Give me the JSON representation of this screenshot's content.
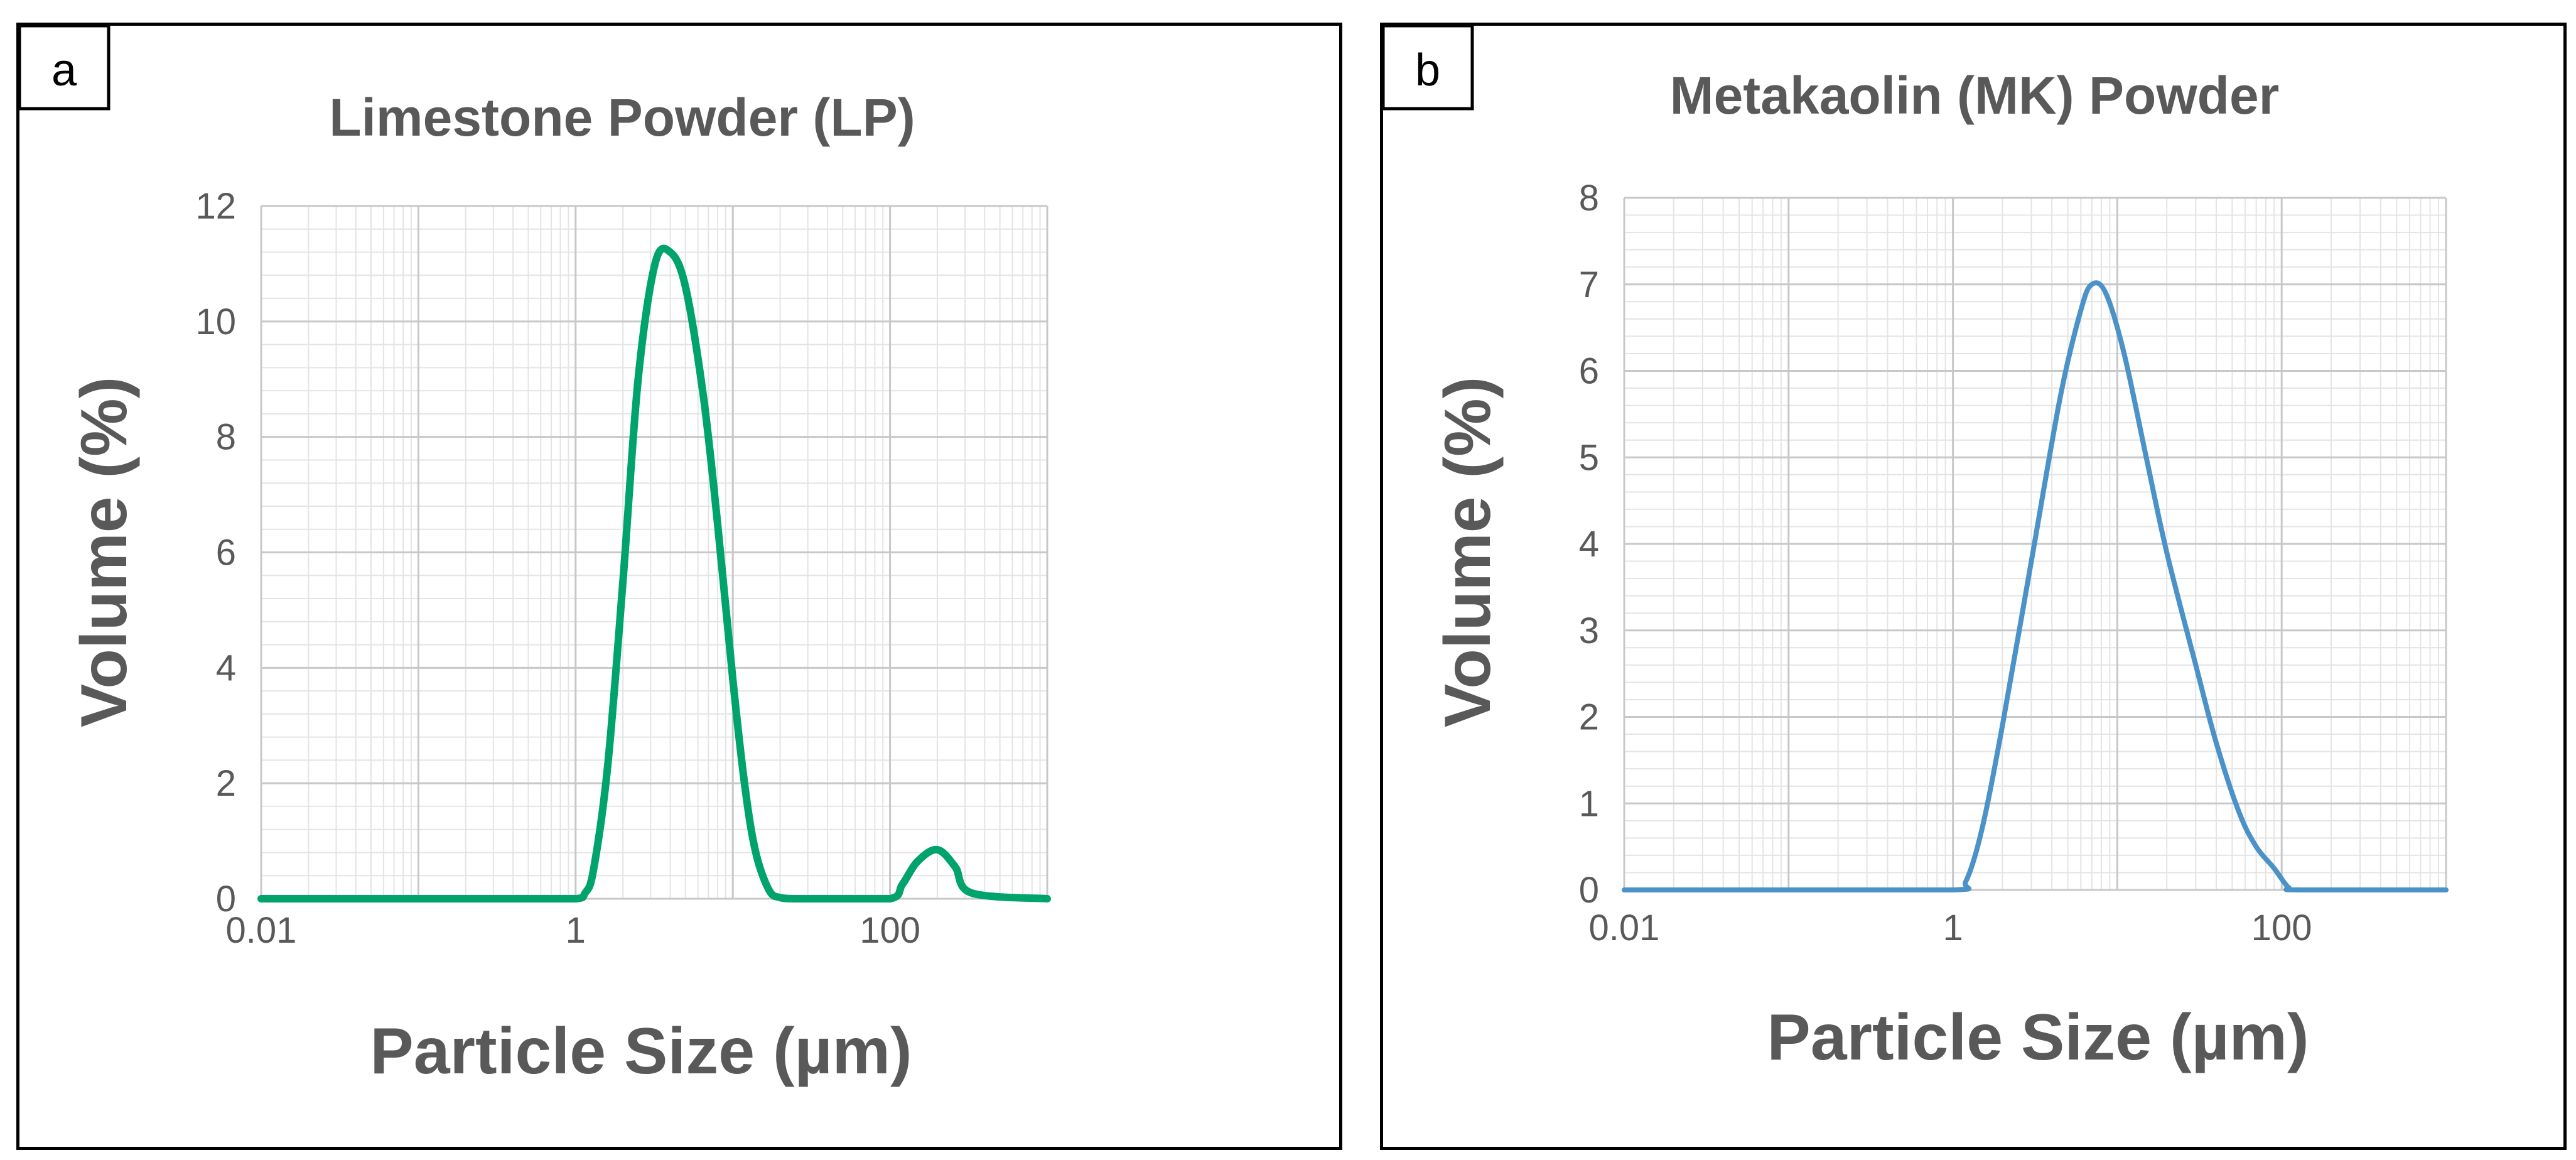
{
  "chart_data": [
    {
      "type": "line",
      "panel_label": "a",
      "title": "Limestone Powder (LP)",
      "xlabel": "Particle Size (µm)",
      "ylabel": "Volume (%)",
      "x_scale": "log",
      "xlim": [
        0.01,
        1000
      ],
      "ylim": [
        0,
        12
      ],
      "x_ticks": [
        0.01,
        1,
        100
      ],
      "x_tick_labels": [
        "0.01",
        "1",
        "100"
      ],
      "y_ticks": [
        0,
        2,
        4,
        6,
        8,
        10,
        12
      ],
      "y_tick_labels": [
        "0",
        "2",
        "4",
        "6",
        "8",
        "10",
        "12"
      ],
      "grid": true,
      "series": [
        {
          "name": "Limestone Powder (LP)",
          "color": "#00a36c",
          "x": [
            0.01,
            0.1,
            0.5,
            1.0,
            1.15,
            1.3,
            1.6,
            2.0,
            2.5,
            3.2,
            4.0,
            5.0,
            6.5,
            8.0,
            10.0,
            12.0,
            14.0,
            17.0,
            20.0,
            25.0,
            40.0,
            100.0,
            120.0,
            150.0,
            200.0,
            260.0,
            330.0,
            1000.0
          ],
          "values": [
            0,
            0,
            0,
            0,
            0.1,
            0.5,
            2.3,
            5.5,
            9.0,
            11.0,
            11.2,
            10.6,
            8.7,
            6.5,
            3.8,
            1.9,
            0.8,
            0.15,
            0.02,
            0,
            0,
            0,
            0.25,
            0.65,
            0.85,
            0.55,
            0.1,
            0
          ]
        }
      ]
    },
    {
      "type": "line",
      "panel_label": "b",
      "title": "Metakaolin (MK) Powder",
      "xlabel": "Particle Size (µm)",
      "ylabel": "Volume (%)",
      "x_scale": "log",
      "xlim": [
        0.01,
        1000
      ],
      "ylim": [
        0,
        8
      ],
      "x_ticks": [
        0.01,
        1,
        100
      ],
      "x_tick_labels": [
        "0.01",
        "1",
        "100"
      ],
      "y_ticks": [
        0,
        1,
        2,
        3,
        4,
        5,
        6,
        7,
        8
      ],
      "y_tick_labels": [
        "0",
        "1",
        "2",
        "3",
        "4",
        "5",
        "6",
        "7",
        "8"
      ],
      "grid": true,
      "series": [
        {
          "name": "Metakaolin (MK) Powder",
          "color": "#4b92c8",
          "x": [
            0.01,
            0.1,
            1.0,
            1.2,
            1.5,
            2.0,
            3.0,
            4.5,
            6.0,
            7.0,
            8.5,
            11.0,
            15.0,
            20.0,
            30.0,
            40.0,
            55.0,
            70.0,
            90.0,
            110.0,
            130.0,
            1000.0
          ],
          "values": [
            0,
            0,
            0,
            0.1,
            0.7,
            1.9,
            3.8,
            5.7,
            6.7,
            7.0,
            6.9,
            6.2,
            5.0,
            3.9,
            2.6,
            1.7,
            0.9,
            0.5,
            0.25,
            0.03,
            0,
            0
          ]
        }
      ]
    }
  ]
}
